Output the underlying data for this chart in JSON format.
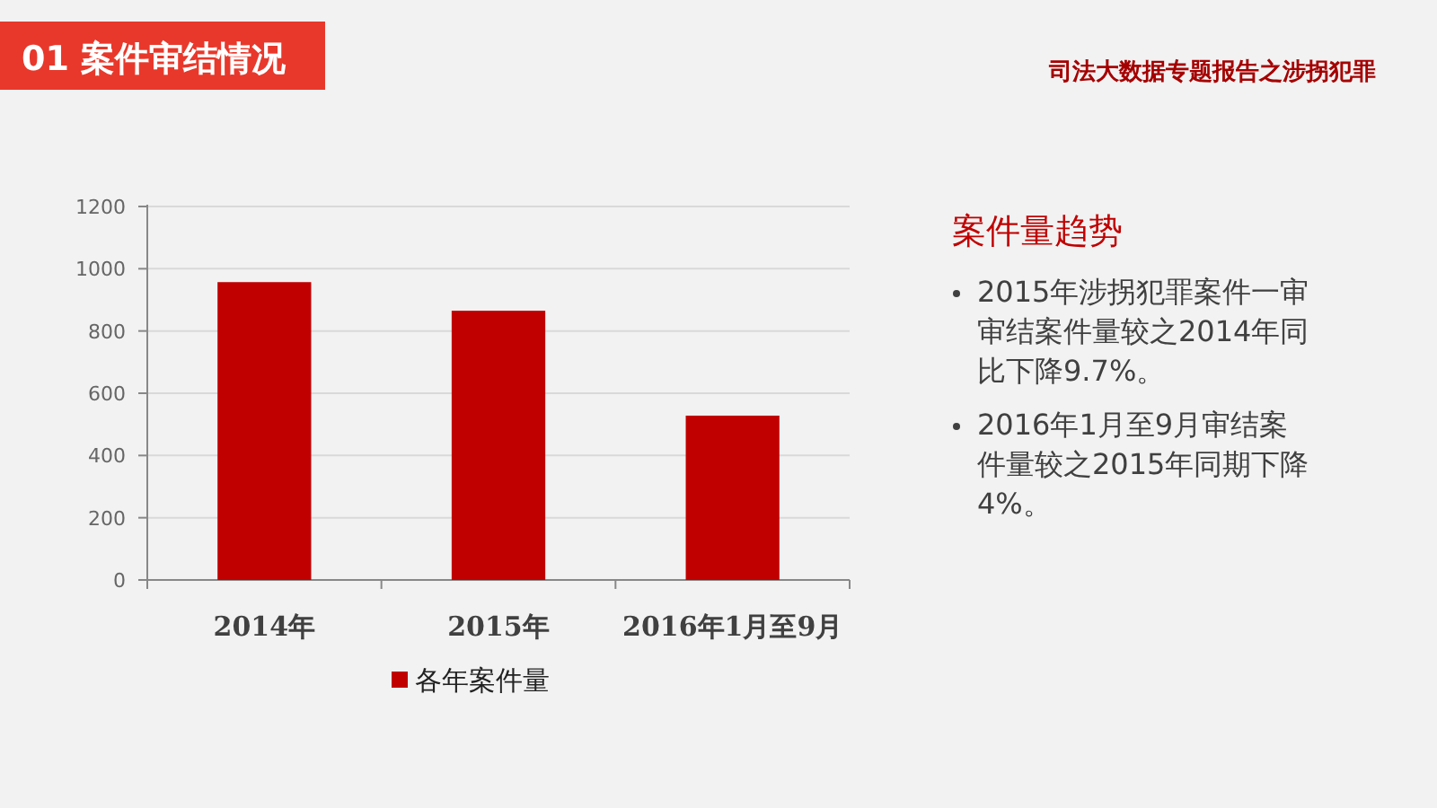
{
  "chart_data": {
    "type": "bar",
    "title": "01  案件审结情况",
    "subtitle": "司法大数据专题报告之涉拐犯罪",
    "categories": [
      "2014年",
      "2015年",
      "2016年1月至9月"
    ],
    "series": [
      {
        "name": "各年案件量",
        "color": "#c00000",
        "values": [
          957,
          865,
          528
        ]
      }
    ],
    "ylim": [
      0,
      1200
    ],
    "yticks": [
      0,
      200,
      400,
      600,
      800,
      1000,
      1200
    ],
    "grid": "y",
    "legend": "bottom",
    "annotations": [
      "案件量趋势",
      "2015年涉拐犯罪案件一审审结案件量较之2014年同比下降9.7%。",
      "2016年1月至9月审结案件量较之2015年同期下降4%。"
    ]
  }
}
